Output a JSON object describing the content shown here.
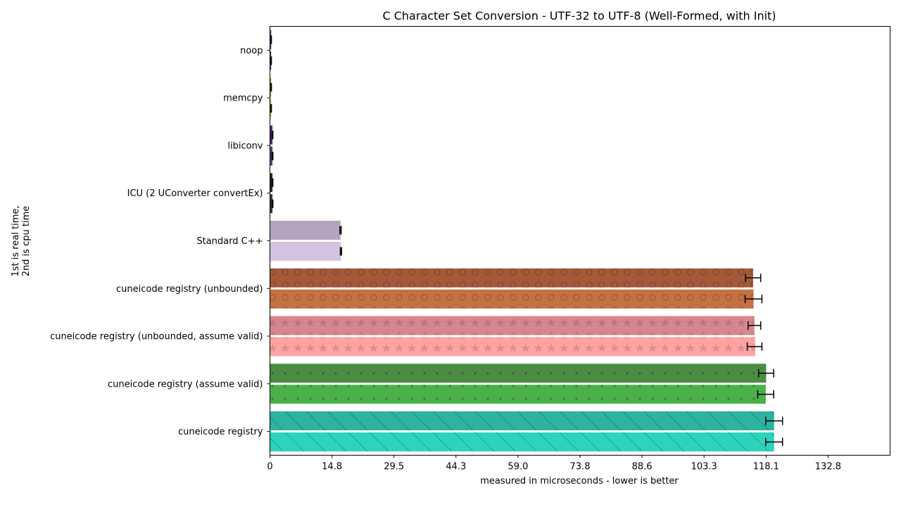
{
  "chart_data": {
    "type": "bar",
    "orientation": "horizontal",
    "title": "C Character Set Conversion - UTF-32 to UTF-8 (Well-Formed, with Init)",
    "xlabel": "measured in microseconds - lower is better",
    "ylabel_lines": [
      "1st is real time,",
      "2nd is cpu time"
    ],
    "xlim": [
      0,
      147.6
    ],
    "xticks": [
      "0",
      "14.8",
      "29.5",
      "44.3",
      "59.0",
      "73.8",
      "88.6",
      "103.3",
      "118.1",
      "132.8"
    ],
    "xtick_values": [
      0,
      14.76,
      29.52,
      44.28,
      59.04,
      73.8,
      88.56,
      103.32,
      118.08,
      132.84
    ],
    "grid": false,
    "categories": [
      "noop",
      "memcpy",
      "libiconv",
      "ICU (2 UConverter convertEx)",
      "Standard C++",
      "cuneicode registry (unbounded)",
      "cuneicode registry (unbounded, assume valid)",
      "cuneicode registry (assume valid)",
      "cuneicode registry"
    ],
    "series": [
      {
        "label": "real time",
        "values": [
          0.3,
          0.3,
          0.6,
          0.6,
          16.8,
          115.0,
          115.3,
          118.1,
          120.0
        ],
        "err_low": [
          0.05,
          0.05,
          0.1,
          0.1,
          0.15,
          1.8,
          1.5,
          1.8,
          2.0
        ],
        "err_high": [
          0.05,
          0.05,
          0.1,
          0.1,
          0.15,
          1.8,
          1.5,
          1.8,
          2.0
        ]
      },
      {
        "label": "cpu time",
        "values": [
          0.3,
          0.3,
          0.6,
          0.6,
          16.9,
          115.1,
          115.5,
          118.0,
          120.0
        ],
        "err_low": [
          0.05,
          0.05,
          0.1,
          0.1,
          0.15,
          2.0,
          1.9,
          1.9,
          2.0
        ],
        "err_high": [
          0.05,
          0.05,
          0.1,
          0.1,
          0.15,
          2.0,
          1.6,
          1.9,
          2.0
        ]
      }
    ],
    "colors": {
      "real": [
        "#5a2d7a",
        "#9e9a3a",
        "#4a2e6e",
        "#2a2a2a",
        "#b3a3bf",
        "#a45a3a",
        "#d8868e",
        "#4b8c42",
        "#2db3a0"
      ],
      "cpu": [
        "#6a3d8a",
        "#bdb84a",
        "#5a3e7e",
        "#3a3a3a",
        "#d3c3e0",
        "#c57242",
        "#ffa3a3",
        "#4cb04a",
        "#2dd3bd"
      ]
    },
    "hatches": [
      "none",
      "none",
      "none",
      "none",
      "none",
      "circles",
      "stars",
      "dots",
      "diagonal"
    ]
  }
}
